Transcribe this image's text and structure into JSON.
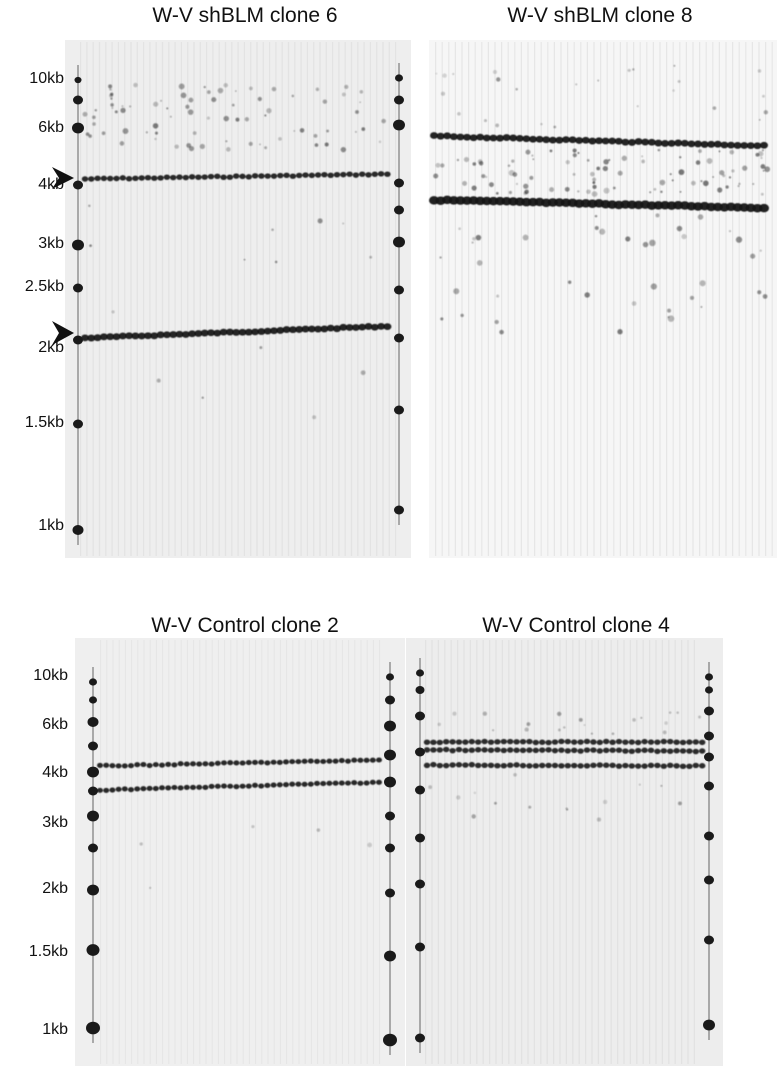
{
  "panels": [
    {
      "title": "W-V shBLM clone 6",
      "markers": [
        "10kb",
        "6kb",
        "4kb",
        "3kb",
        "2.5kb",
        "2kb",
        "1.5kb",
        "1kb"
      ],
      "arrowheads": 2
    },
    {
      "title": "W-V shBLM clone 8"
    },
    {
      "title": "W-V Control clone 2",
      "markers": [
        "10kb",
        "6kb",
        "4kb",
        "3kb",
        "2kb",
        "1.5kb",
        "1kb"
      ]
    },
    {
      "title": "W-V Control clone 4"
    }
  ],
  "colors": {
    "gel_background": "#eeeeee",
    "band": "#1a1a1a",
    "lane_streak": "#d8d8d8"
  }
}
